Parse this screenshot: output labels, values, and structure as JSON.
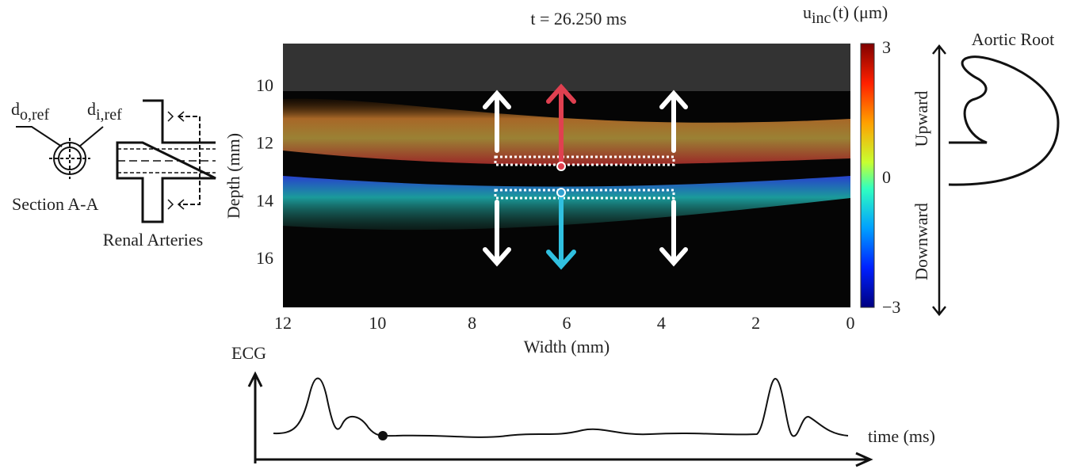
{
  "header": {
    "time_label": "t = 26.250 ms"
  },
  "image": {
    "x_label": "Width (mm)",
    "y_label": "Depth (mm)",
    "xticks": [
      12,
      10,
      8,
      6,
      4,
      2,
      0
    ],
    "yticks": [
      10,
      12,
      14,
      16
    ]
  },
  "colorbar": {
    "label_main": "u",
    "label_sub": "inc",
    "label_rest": "(t) (μm)",
    "ticks": [
      3,
      0,
      {
        "value": -3,
        "label": "−3"
      }
    ],
    "upward": "Upward",
    "downward": "Downward"
  },
  "aortic_root": "Aortic Root",
  "section": {
    "label": "Section A-A",
    "d_outer": "d",
    "d_outer_sub": "o,ref",
    "d_inner": "d",
    "d_inner_sub": "i,ref"
  },
  "renal": {
    "label": "Renal Arteries"
  },
  "ecg": {
    "label": "ECG",
    "x_label": "time (ms)"
  }
}
